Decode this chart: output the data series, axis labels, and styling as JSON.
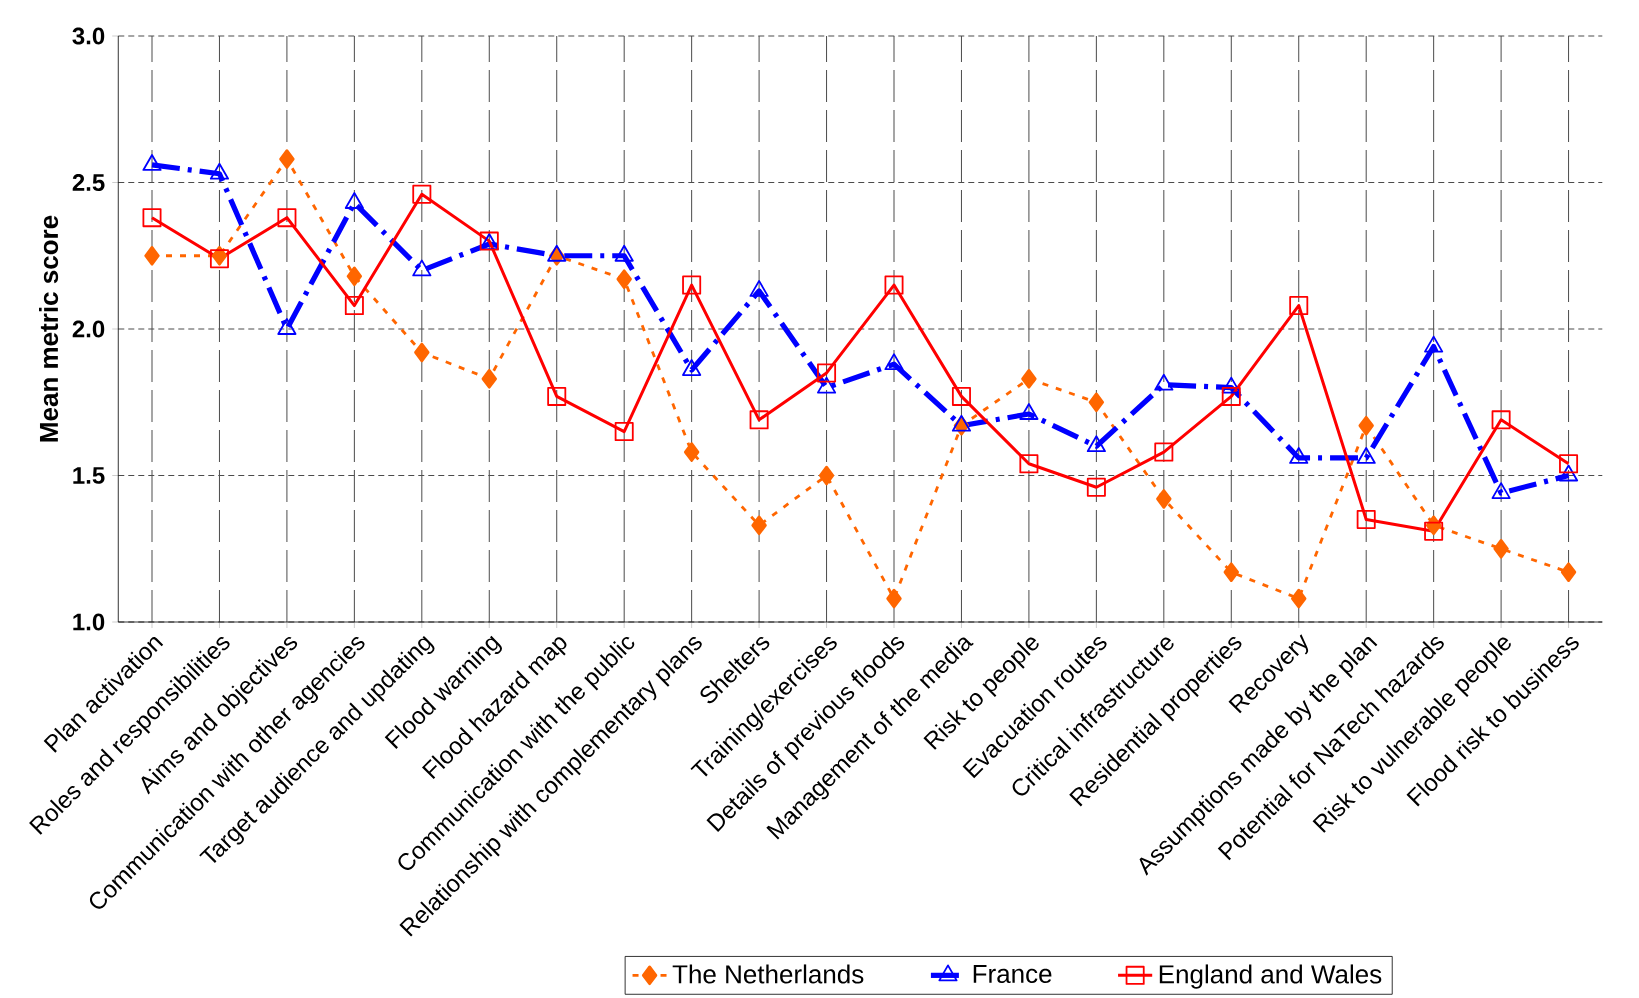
{
  "chart_data": {
    "type": "line",
    "ylabel": "Mean metric score",
    "categories": [
      "Plan activation",
      "Roles and responsibilities",
      "Aims and objectives",
      "Communication with other agencies",
      "Target audience and updating",
      "Flood warning",
      "Flood hazard map",
      "Communication with the public",
      "Relationship with complementary  plans",
      "Shelters",
      "Training/exercises",
      "Details of previous floods",
      "Management of the media",
      "Risk to people",
      "Evacuation routes",
      "Critical infrastructure",
      "Residential properties",
      "Recovery",
      "Assumptions made by the plan",
      "Potential for NaTech hazards",
      "Risk to vulnerable people",
      "Flood risk to business"
    ],
    "series": [
      {
        "name": "The Netherlands",
        "color": "#ff6600",
        "marker": "diamond",
        "line_style": "dotted",
        "values": [
          2.25,
          2.25,
          2.58,
          2.18,
          1.92,
          1.83,
          2.25,
          2.17,
          1.58,
          1.33,
          1.5,
          1.08,
          1.67,
          1.83,
          1.75,
          1.42,
          1.17,
          1.08,
          1.67,
          1.33,
          1.25,
          1.17
        ]
      },
      {
        "name": "France",
        "color": "#0000ff",
        "marker": "triangle",
        "line_style": "dashed",
        "values": [
          2.56,
          2.53,
          2.0,
          2.43,
          2.2,
          2.29,
          2.25,
          2.25,
          1.86,
          2.13,
          1.8,
          1.88,
          1.67,
          1.71,
          1.6,
          1.81,
          1.8,
          1.56,
          1.56,
          1.94,
          1.44,
          1.5
        ]
      },
      {
        "name": "England and Wales",
        "color": "#ff0000",
        "marker": "square",
        "line_style": "solid",
        "values": [
          2.38,
          2.24,
          2.38,
          2.08,
          2.46,
          2.3,
          1.77,
          1.65,
          2.15,
          1.69,
          1.85,
          2.15,
          1.77,
          1.54,
          1.46,
          1.58,
          1.77,
          2.08,
          1.35,
          1.31,
          1.69,
          1.54
        ]
      }
    ],
    "ylim": [
      1.0,
      3.0
    ],
    "yticks": [
      {
        "value": 1.0,
        "label": "1.0"
      },
      {
        "value": 1.5,
        "label": "1.5"
      },
      {
        "value": 2.0,
        "label": "2.0"
      },
      {
        "value": 2.5,
        "label": "2.5"
      },
      {
        "value": 3.0,
        "label": "3.0"
      }
    ],
    "grid": true,
    "legend": "bottom"
  }
}
